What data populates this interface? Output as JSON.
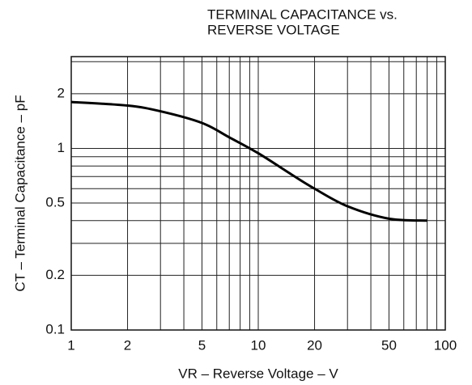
{
  "chart_data": {
    "type": "line",
    "title": [
      "TERMINAL CAPACITANCE vs.",
      "REVERSE VOLTAGE"
    ],
    "x_label": "VR – Reverse Voltage – V",
    "y_label": "CT – Terminal Capacitance – pF",
    "x": [
      1,
      2,
      3,
      5,
      7,
      10,
      15,
      20,
      30,
      50,
      80
    ],
    "values": [
      1.8,
      1.72,
      1.6,
      1.38,
      1.15,
      0.94,
      0.72,
      0.6,
      0.48,
      0.41,
      0.4
    ],
    "color": "#000000",
    "log_x": true,
    "log_y": true,
    "xlim": [
      1,
      100
    ],
    "ylim": [
      0.1,
      3.2
    ],
    "xticks": [
      1,
      2,
      5,
      10,
      20,
      50,
      100
    ],
    "yticks": [
      0.1,
      0.2,
      0.5,
      1,
      2
    ],
    "xgrid": [
      1,
      2,
      3,
      4,
      5,
      6,
      7,
      8,
      9,
      10,
      20,
      30,
      40,
      50,
      60,
      70,
      80,
      90,
      100
    ],
    "ygrid": [
      0.1,
      0.2,
      0.3,
      0.4,
      0.5,
      0.6,
      0.7,
      0.8,
      0.9,
      1,
      2,
      3
    ],
    "grid": true
  }
}
